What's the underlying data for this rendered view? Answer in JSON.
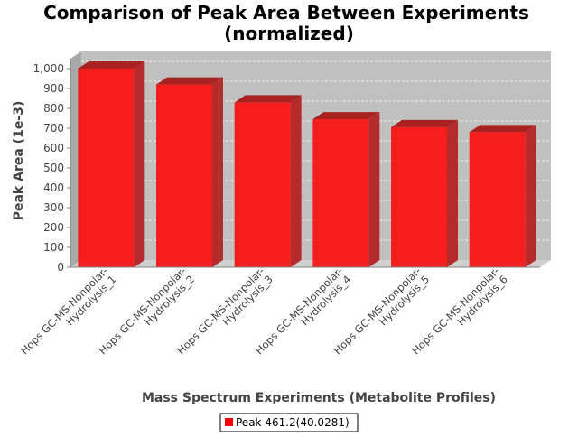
{
  "chart_data": {
    "type": "bar",
    "title_lines": [
      "Comparison of Peak Area Between Experiments",
      "(normalized)"
    ],
    "xlabel": "Mass Spectrum Experiments (Metabolite Profiles)",
    "ylabel": "Peak Area (1e-3)",
    "categories": [
      [
        "Hops GC-MS-Nonpolar-",
        "Hydrolysis_1"
      ],
      [
        "Hops GC-MS-Nonpolar-",
        "Hydrolysis_2"
      ],
      [
        "Hops GC-MS-Nonpolar-",
        "Hydrolysis_3"
      ],
      [
        "Hops GC-MS-Nonpolar-",
        "Hydrolysis_4"
      ],
      [
        "Hops GC-MS-Nonpolar-",
        "Hydrolysis_5"
      ],
      [
        "Hops GC-MS-Nonpolar-",
        "Hydrolysis_6"
      ]
    ],
    "series": [
      {
        "name": "Peak 461.2(40.0281)",
        "color": "#ff0000",
        "values": [
          1000,
          920,
          830,
          745,
          705,
          680
        ]
      }
    ],
    "ylim": [
      0,
      1000
    ],
    "yticks": [
      0,
      100,
      200,
      300,
      400,
      500,
      600,
      700,
      800,
      900,
      1000
    ],
    "ytick_labels": [
      "0",
      "100",
      "200",
      "300",
      "400",
      "500",
      "600",
      "700",
      "800",
      "900",
      "1,000"
    ],
    "grid": true,
    "three_d": true,
    "plot_background": "#c0c0c0",
    "legend_position": "bottom"
  }
}
